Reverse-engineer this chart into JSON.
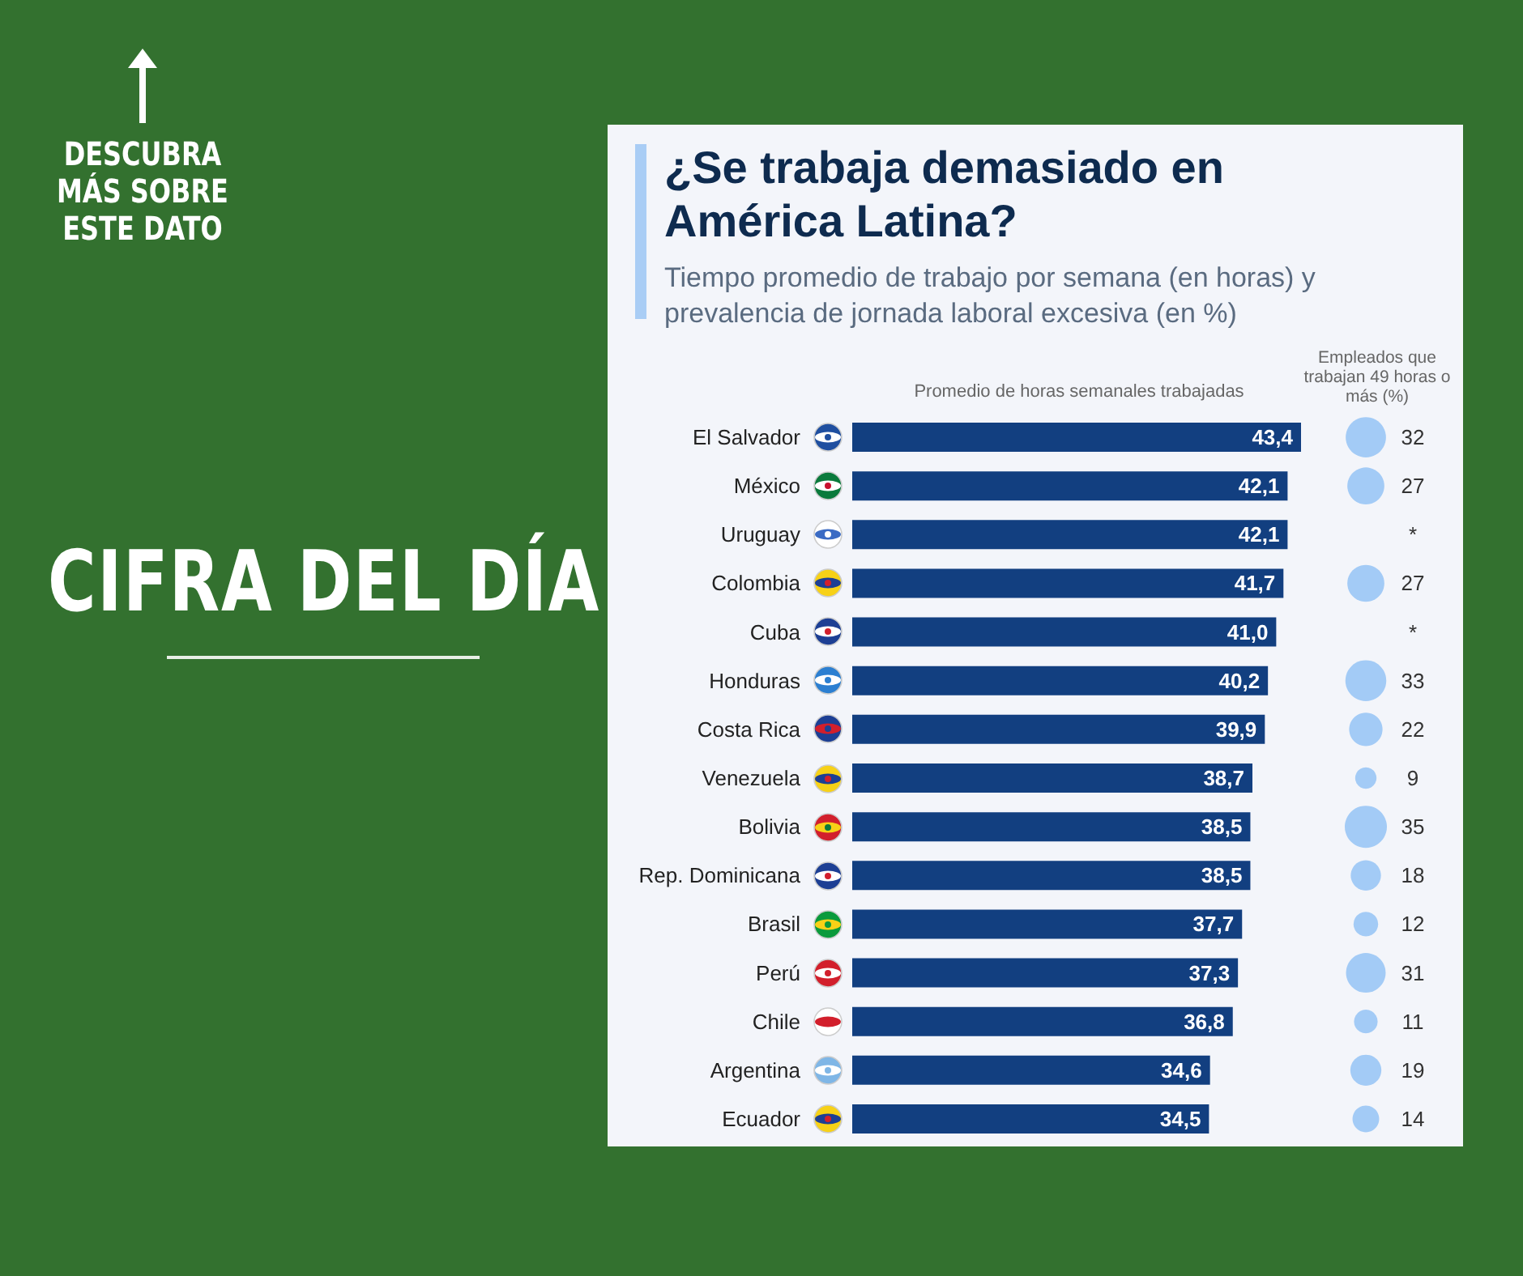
{
  "chart_data": [
    {
      "type": "bar",
      "orientation": "horizontal",
      "title": "¿Se trabaja demasiado en América Latina?",
      "subtitle": "Tiempo promedio de trabajo por semana (en horas) y prevalencia de jornada laboral excesiva (en %)",
      "xlabel": "Promedio de horas semanales trabajadas",
      "annotations": [
        "CIFRA DEL DÍA",
        "DESCUBRA MÁS SOBRE ESTE DATO"
      ],
      "color": "#123f80",
      "categories": [
        "El Salvador",
        "México",
        "Uruguay",
        "Colombia",
        "Cuba",
        "Honduras",
        "Costa Rica",
        "Venezuela",
        "Bolivia",
        "Rep. Dominicana",
        "Brasil",
        "Perú",
        "Chile",
        "Argentina",
        "Ecuador"
      ],
      "values": [
        43.4,
        42.1,
        42.1,
        41.7,
        41.0,
        40.2,
        39.9,
        38.7,
        38.5,
        38.5,
        37.7,
        37.3,
        36.8,
        34.6,
        34.5
      ],
      "value_labels": [
        "43,4",
        "42,1",
        "42,1",
        "41,7",
        "41,0",
        "40,2",
        "39,9",
        "38,7",
        "38,5",
        "38,5",
        "37,7",
        "37,3",
        "36,8",
        "34,6",
        "34,5"
      ]
    },
    {
      "type": "other",
      "title": "Empleados que trabajan 49 horas o más (%)",
      "color": "#a3cbf6",
      "categories": [
        null,
        null,
        null,
        null,
        null,
        null,
        null,
        null,
        null,
        null,
        null,
        null,
        null,
        null,
        null
      ],
      "values": [
        32,
        27,
        null,
        27,
        null,
        33,
        22,
        9,
        35,
        18,
        12,
        31,
        11,
        19,
        14
      ],
      "value_labels": [
        "32",
        "27",
        "*",
        "27",
        "*",
        "33",
        "22",
        "9",
        "35",
        "18",
        "12",
        "31",
        "11",
        "19",
        "14"
      ]
    }
  ]
}
